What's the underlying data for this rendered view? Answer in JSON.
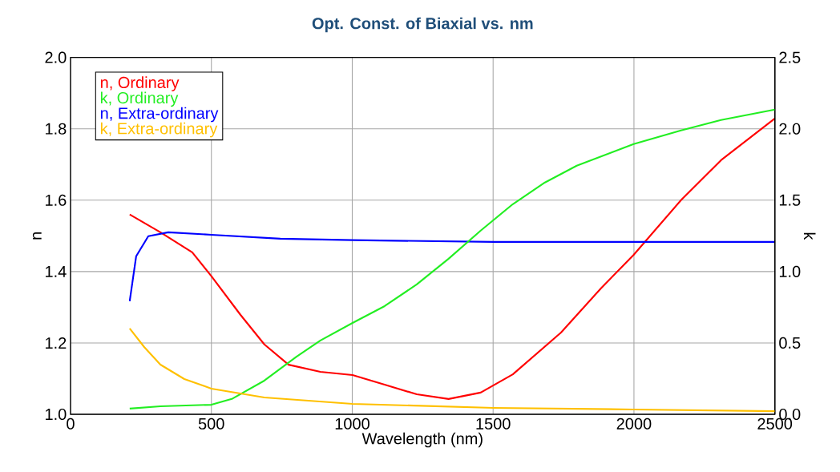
{
  "chart_data": {
    "type": "line",
    "title": "Opt. Const. of Biaxial vs. nm",
    "xlabel": "Wavelength (nm)",
    "ylabel": "n",
    "y2label": "k",
    "xlim": [
      0,
      2500
    ],
    "xticks": [
      0,
      500,
      1000,
      1500,
      2000,
      2500
    ],
    "ylim": [
      1.0,
      2.0
    ],
    "yticks": [
      {
        "value": 1.0,
        "label": "1.0"
      },
      {
        "value": 1.2,
        "label": "1.2"
      },
      {
        "value": 1.4,
        "label": "1.4"
      },
      {
        "value": 1.6,
        "label": "1.6"
      },
      {
        "value": 1.8,
        "label": "1.8"
      },
      {
        "value": 2.0,
        "label": "2.0"
      }
    ],
    "y2lim": [
      0,
      2.5
    ],
    "y2ticks": [
      {
        "value": 0,
        "label": "0.0"
      },
      {
        "value": 0.5,
        "label": "0.5"
      },
      {
        "value": 1.0,
        "label": "1.0"
      },
      {
        "value": 1.5,
        "label": "1.5"
      },
      {
        "value": 2.0,
        "label": "2.0"
      },
      {
        "value": 2.5,
        "label": "2.5"
      }
    ],
    "grid": true,
    "legend": "top left",
    "marker": "none",
    "line_style": "solid",
    "series": [
      {
        "name": "n, Ordinary",
        "color": "#ff0000",
        "x": [
          210,
          319,
          432,
          500,
          603,
          688,
          774,
          887,
          1001,
          1115,
          1229,
          1342,
          1456,
          1570,
          1741,
          1883,
          1999,
          2167,
          2309,
          2500
        ],
        "values": [
          1.56,
          1.51,
          1.454,
          1.387,
          1.279,
          1.196,
          1.139,
          1.119,
          1.11,
          1.083,
          1.056,
          1.043,
          1.061,
          1.112,
          1.229,
          1.353,
          1.447,
          1.6,
          1.712,
          1.829
        ]
      },
      {
        "name": "k, Ordinary",
        "color": "#22ee22",
        "axis": "y2",
        "x": [
          210,
          319,
          500,
          575,
          688,
          802,
          887,
          1001,
          1115,
          1229,
          1342,
          1456,
          1570,
          1684,
          1797,
          1999,
          2167,
          2309,
          2500
        ],
        "values": [
          0.04,
          0.056,
          0.067,
          0.11,
          0.236,
          0.404,
          0.517,
          0.64,
          0.758,
          0.91,
          1.09,
          1.287,
          1.472,
          1.624,
          1.742,
          1.893,
          1.989,
          2.062,
          2.135
        ]
      },
      {
        "name": "n, Extra-ordinary",
        "color": "#0000ff",
        "x": [
          210,
          233,
          276,
          347,
          500,
          745,
          1001,
          1502,
          2500
        ],
        "values": [
          1.317,
          1.443,
          1.499,
          1.51,
          1.503,
          1.492,
          1.488,
          1.483,
          1.483
        ]
      },
      {
        "name": "k, Extra-ordinary",
        "color": "#ffc000",
        "axis": "y2",
        "x": [
          210,
          262,
          319,
          404,
          500,
          688,
          1001,
          1502,
          1999,
          2500
        ],
        "values": [
          0.601,
          0.47,
          0.348,
          0.247,
          0.18,
          0.118,
          0.073,
          0.045,
          0.034,
          0.022
        ]
      }
    ]
  }
}
